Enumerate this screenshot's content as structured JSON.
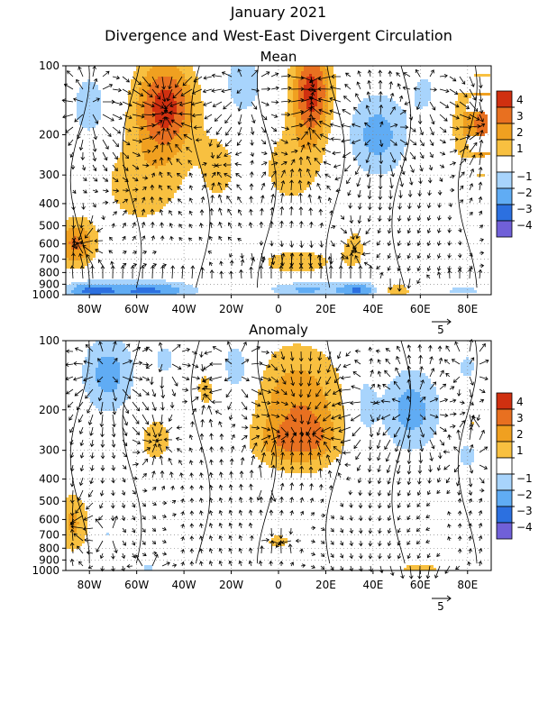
{
  "title": "January 2021",
  "subtitle": "Divergence and West-East Divergent Circulation",
  "colors": {
    "pos1": "#f8c040",
    "pos2": "#f0a020",
    "pos3": "#e87020",
    "pos4": "#d03010",
    "neg1": "#a8d4fc",
    "neg2": "#60acf4",
    "neg3": "#2c70e0",
    "neg4": "#7060d8"
  },
  "chart_data": [
    {
      "type": "heatmap",
      "title": "Mean",
      "xlim": [
        -90,
        90
      ],
      "ylim": [
        1000,
        100
      ],
      "yscale": "log",
      "x_ticks": [
        {
          "v": -80,
          "label": "80W"
        },
        {
          "v": -60,
          "label": "60W"
        },
        {
          "v": -40,
          "label": "40W"
        },
        {
          "v": -20,
          "label": "20W"
        },
        {
          "v": 0,
          "label": "0"
        },
        {
          "v": 20,
          "label": "20E"
        },
        {
          "v": 40,
          "label": "40E"
        },
        {
          "v": 60,
          "label": "60E"
        },
        {
          "v": 80,
          "label": "80E"
        }
      ],
      "y_ticks": [
        100,
        200,
        300,
        400,
        500,
        600,
        700,
        800,
        900,
        1000
      ],
      "colorbar_labels": [
        "4",
        "3",
        "2",
        "1",
        "−1",
        "−2",
        "−3",
        "−4"
      ],
      "vector_scale_label": "5",
      "features": [
        {
          "lon": -80,
          "p": 150,
          "amp": -2,
          "slon": 5,
          "sp": 0.22
        },
        {
          "lon": -48,
          "p": 150,
          "amp": 4.5,
          "slon": 9,
          "sp": 0.34
        },
        {
          "lon": -58,
          "p": 330,
          "amp": 1.5,
          "slon": 14,
          "sp": 0.35
        },
        {
          "lon": -25,
          "p": 280,
          "amp": 1.3,
          "slon": 6,
          "sp": 0.3
        },
        {
          "lon": -15,
          "p": 120,
          "amp": -1.8,
          "slon": 6,
          "sp": 0.25
        },
        {
          "lon": 14,
          "p": 130,
          "amp": 4.5,
          "slon": 6,
          "sp": 0.35
        },
        {
          "lon": 5,
          "p": 280,
          "amp": 1.5,
          "slon": 10,
          "sp": 0.3
        },
        {
          "lon": 42,
          "p": 200,
          "amp": -2.5,
          "slon": 9,
          "sp": 0.3
        },
        {
          "lon": 62,
          "p": 130,
          "amp": -1.2,
          "slon": 5,
          "sp": 0.2
        },
        {
          "lon": 86,
          "p": 180,
          "amp": 3.2,
          "slon": 8,
          "sp": 0.34
        },
        {
          "lon": -86,
          "p": 600,
          "amp": 3.2,
          "slon": 6,
          "sp": 0.17
        },
        {
          "lon": 8,
          "p": 720,
          "amp": 1.6,
          "slon": 13,
          "sp": 0.1
        },
        {
          "lon": 32,
          "p": 620,
          "amp": 1.4,
          "slon": 4,
          "sp": 0.16
        },
        {
          "lon": -80,
          "p": 960,
          "amp": -2.8,
          "slon": 8,
          "sp": 0.07
        },
        {
          "lon": -55,
          "p": 960,
          "amp": -3.2,
          "slon": 14,
          "sp": 0.07
        },
        {
          "lon": 12,
          "p": 950,
          "amp": -2.2,
          "slon": 12,
          "sp": 0.06
        },
        {
          "lon": 34,
          "p": 960,
          "amp": -2.8,
          "slon": 6,
          "sp": 0.06
        },
        {
          "lon": 50,
          "p": 960,
          "amp": 1.8,
          "slon": 5,
          "sp": 0.05
        },
        {
          "lon": 78,
          "p": 960,
          "amp": -1.2,
          "slon": 10,
          "sp": 0.05
        }
      ]
    },
    {
      "type": "heatmap",
      "title": "Anomaly",
      "xlim": [
        -90,
        90
      ],
      "ylim": [
        1000,
        100
      ],
      "yscale": "log",
      "x_ticks": [
        {
          "v": -80,
          "label": "80W"
        },
        {
          "v": -60,
          "label": "60W"
        },
        {
          "v": -40,
          "label": "40W"
        },
        {
          "v": -20,
          "label": "20W"
        },
        {
          "v": 0,
          "label": "0"
        },
        {
          "v": 20,
          "label": "20E"
        },
        {
          "v": 40,
          "label": "40E"
        },
        {
          "v": 60,
          "label": "60E"
        },
        {
          "v": 80,
          "label": "80E"
        }
      ],
      "y_ticks": [
        100,
        200,
        300,
        400,
        500,
        600,
        700,
        800,
        900,
        1000
      ],
      "colorbar_labels": [
        "4",
        "3",
        "2",
        "1",
        "−1",
        "−2",
        "−3",
        "−4"
      ],
      "vector_scale_label": "5",
      "features": [
        {
          "lon": -72,
          "p": 140,
          "amp": -2.5,
          "slon": 8,
          "sp": 0.28
        },
        {
          "lon": -52,
          "p": 270,
          "amp": 1.5,
          "slon": 6,
          "sp": 0.2
        },
        {
          "lon": -48,
          "p": 120,
          "amp": -1.3,
          "slon": 4,
          "sp": 0.15
        },
        {
          "lon": -30,
          "p": 160,
          "amp": 1.3,
          "slon": 5,
          "sp": 0.22
        },
        {
          "lon": -18,
          "p": 135,
          "amp": -1.8,
          "slon": 6,
          "sp": 0.25
        },
        {
          "lon": 8,
          "p": 190,
          "amp": 2.8,
          "slon": 14,
          "sp": 0.42
        },
        {
          "lon": 14,
          "p": 270,
          "amp": 1.6,
          "slon": 8,
          "sp": 0.18
        },
        {
          "lon": 0,
          "p": 280,
          "amp": 1.2,
          "slon": 8,
          "sp": 0.14
        },
        {
          "lon": 36,
          "p": 190,
          "amp": -1.5,
          "slon": 4,
          "sp": 0.28
        },
        {
          "lon": 56,
          "p": 200,
          "amp": -2.5,
          "slon": 9,
          "sp": 0.3
        },
        {
          "lon": 80,
          "p": 130,
          "amp": -1.2,
          "slon": 4,
          "sp": 0.15
        },
        {
          "lon": 80,
          "p": 320,
          "amp": -1.2,
          "slon": 5,
          "sp": 0.15
        },
        {
          "lon": 82,
          "p": 230,
          "amp": 1.2,
          "slon": 2,
          "sp": 0.05
        },
        {
          "lon": -87,
          "p": 620,
          "amp": 2.2,
          "slon": 5,
          "sp": 0.22
        },
        {
          "lon": -5,
          "p": 420,
          "amp": -1.2,
          "slon": 2,
          "sp": 0.04
        },
        {
          "lon": 0,
          "p": 750,
          "amp": 1.5,
          "slon": 4,
          "sp": 0.06
        },
        {
          "lon": -72,
          "p": 700,
          "amp": -1.1,
          "slon": 2,
          "sp": 0.05
        },
        {
          "lon": -55,
          "p": 980,
          "amp": -1.3,
          "slon": 3,
          "sp": 0.04
        },
        {
          "lon": 60,
          "p": 980,
          "amp": 1.5,
          "slon": 8,
          "sp": 0.04
        }
      ]
    }
  ]
}
